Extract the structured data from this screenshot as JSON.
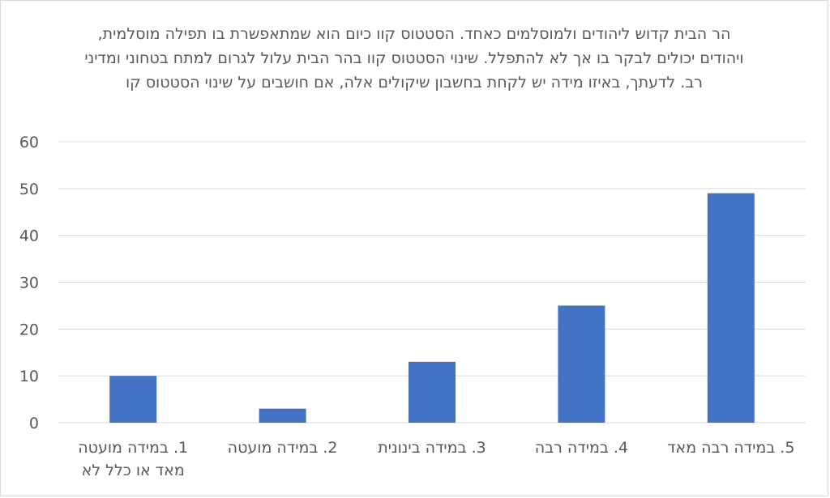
{
  "chart_data": {
    "type": "bar",
    "title": "הר הבית קדוש ליהודים ולמוסלמים כאחד. הסטטוס קוו כיום הוא שמתאפשרת בו תפילה מוסלמית, ויהודים יכולים לבקר בו אך לא להתפלל. שינוי הסטטוס קוו בהר הבית עלול לגרום למתח בטחוני ומדיני רב. לדעתך, באיזו מידה יש לקחת בחשבון שיקולים אלה, אם חושבים על שינוי הסטטוס קו",
    "categories": [
      "1. במידה מועטה מאד או כלל לא",
      "2. במידה מועטה",
      "3. במידה בינונית",
      "4. במידה רבה",
      "5. במידה רבה מאד"
    ],
    "values": [
      10,
      3,
      13,
      25,
      49
    ],
    "ylim": [
      0,
      60
    ],
    "yticks": [
      0,
      10,
      20,
      30,
      40,
      50,
      60
    ],
    "grid": true,
    "bar_color": "#4472c4",
    "grid_color": "#d9d9d9"
  }
}
